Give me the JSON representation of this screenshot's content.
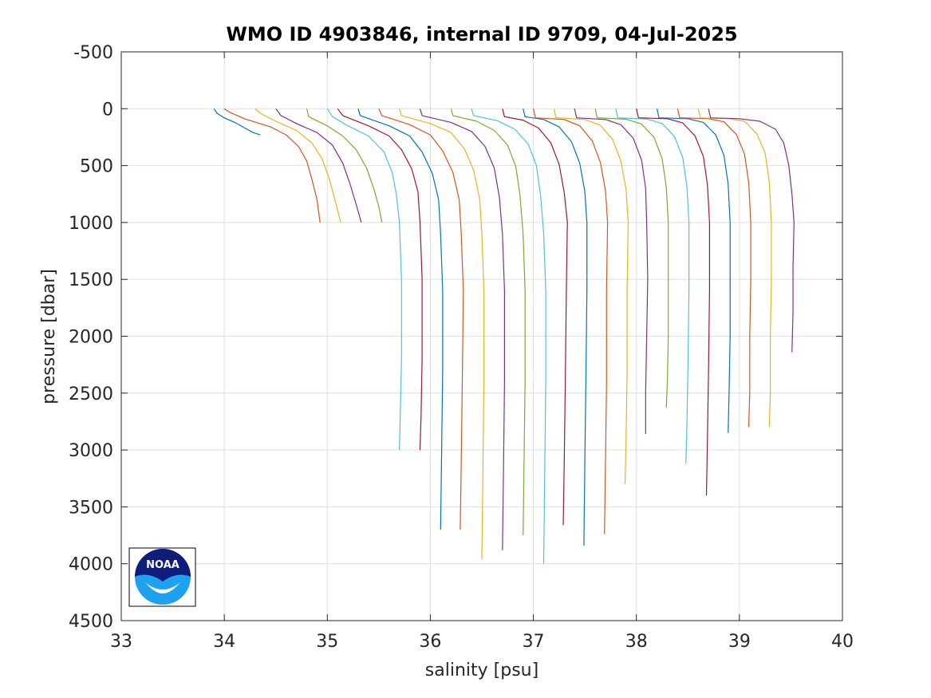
{
  "chart_data": {
    "type": "line",
    "title": "WMO ID 4903846, internal ID 9709, 04-Jul-2025",
    "xlabel": "salinity [psu]",
    "ylabel": "pressure [dbar]",
    "xlim": [
      33,
      40
    ],
    "ylim": [
      -500,
      4500
    ],
    "y_reversed": true,
    "grid": true,
    "xticks": [
      33,
      34,
      35,
      36,
      37,
      38,
      39,
      40
    ],
    "yticks": [
      -500,
      0,
      500,
      1000,
      1500,
      2000,
      2500,
      3000,
      3500,
      4000,
      4500
    ],
    "xtick_labels": [
      "33",
      "34",
      "35",
      "36",
      "37",
      "38",
      "39",
      "40"
    ],
    "ytick_labels": [
      "-500",
      "0",
      "500",
      "1000",
      "1500",
      "2000",
      "2500",
      "3000",
      "3500",
      "4000",
      "4500"
    ],
    "colors": [
      "#0072BD",
      "#D95319",
      "#EDB120",
      "#7E2F8E",
      "#77AC30",
      "#4DBEEE",
      "#A2142F"
    ],
    "series": [
      {
        "points": [
          [
            33.9,
            0
          ],
          [
            33.93,
            40
          ],
          [
            34.0,
            80
          ],
          [
            34.1,
            120
          ],
          [
            34.2,
            170
          ],
          [
            34.28,
            210
          ],
          [
            34.35,
            230
          ]
        ]
      },
      {
        "points": [
          [
            34.0,
            0
          ],
          [
            34.05,
            30
          ],
          [
            34.2,
            90
          ],
          [
            34.45,
            160
          ],
          [
            34.6,
            230
          ],
          [
            34.72,
            330
          ],
          [
            34.8,
            460
          ],
          [
            34.85,
            620
          ],
          [
            34.9,
            800
          ],
          [
            34.93,
            1000
          ]
        ]
      },
      {
        "points": [
          [
            34.3,
            0
          ],
          [
            34.35,
            40
          ],
          [
            34.5,
            110
          ],
          [
            34.7,
            190
          ],
          [
            34.85,
            300
          ],
          [
            34.95,
            440
          ],
          [
            35.02,
            620
          ],
          [
            35.08,
            820
          ],
          [
            35.13,
            1000
          ]
        ]
      },
      {
        "points": [
          [
            34.5,
            0
          ],
          [
            34.55,
            60
          ],
          [
            34.7,
            130
          ],
          [
            34.9,
            210
          ],
          [
            35.05,
            320
          ],
          [
            35.15,
            480
          ],
          [
            35.22,
            660
          ],
          [
            35.28,
            840
          ],
          [
            35.33,
            1000
          ]
        ]
      },
      {
        "points": [
          [
            34.8,
            0
          ],
          [
            34.82,
            70
          ],
          [
            35.0,
            150
          ],
          [
            35.15,
            240
          ],
          [
            35.28,
            360
          ],
          [
            35.38,
            520
          ],
          [
            35.45,
            700
          ],
          [
            35.5,
            860
          ],
          [
            35.53,
            1000
          ]
        ]
      },
      {
        "points": [
          [
            35.0,
            0
          ],
          [
            35.05,
            70
          ],
          [
            35.2,
            150
          ],
          [
            35.4,
            240
          ],
          [
            35.55,
            380
          ],
          [
            35.63,
            560
          ],
          [
            35.67,
            750
          ],
          [
            35.7,
            1000
          ],
          [
            35.72,
            1500
          ],
          [
            35.72,
            2200
          ],
          [
            35.71,
            2600
          ],
          [
            35.7,
            3000
          ]
        ]
      },
      {
        "points": [
          [
            35.1,
            0
          ],
          [
            35.15,
            60
          ],
          [
            35.4,
            150
          ],
          [
            35.6,
            240
          ],
          [
            35.72,
            360
          ],
          [
            35.82,
            530
          ],
          [
            35.88,
            730
          ],
          [
            35.9,
            1000
          ],
          [
            35.92,
            1500
          ],
          [
            35.92,
            2200
          ],
          [
            35.91,
            2700
          ],
          [
            35.9,
            3000
          ]
        ]
      },
      {
        "points": [
          [
            35.3,
            0
          ],
          [
            35.32,
            60
          ],
          [
            35.6,
            150
          ],
          [
            35.8,
            240
          ],
          [
            35.92,
            380
          ],
          [
            36.02,
            570
          ],
          [
            36.08,
            800
          ],
          [
            36.1,
            1100
          ],
          [
            36.12,
            1600
          ],
          [
            36.12,
            2300
          ],
          [
            36.11,
            3000
          ],
          [
            36.1,
            3700
          ]
        ]
      },
      {
        "points": [
          [
            35.5,
            0
          ],
          [
            35.53,
            60
          ],
          [
            35.8,
            140
          ],
          [
            36.0,
            230
          ],
          [
            36.12,
            370
          ],
          [
            36.22,
            560
          ],
          [
            36.28,
            800
          ],
          [
            36.3,
            1100
          ],
          [
            36.32,
            1600
          ],
          [
            36.31,
            2400
          ],
          [
            36.3,
            3100
          ],
          [
            36.29,
            3700
          ]
        ]
      },
      {
        "points": [
          [
            35.7,
            0
          ],
          [
            35.72,
            60
          ],
          [
            36.0,
            130
          ],
          [
            36.2,
            210
          ],
          [
            36.33,
            350
          ],
          [
            36.42,
            540
          ],
          [
            36.48,
            800
          ],
          [
            36.5,
            1100
          ],
          [
            36.52,
            1600
          ],
          [
            36.52,
            2400
          ],
          [
            36.51,
            3200
          ],
          [
            36.5,
            3960
          ]
        ]
      },
      {
        "points": [
          [
            35.9,
            0
          ],
          [
            35.92,
            60
          ],
          [
            36.2,
            120
          ],
          [
            36.4,
            200
          ],
          [
            36.53,
            330
          ],
          [
            36.62,
            520
          ],
          [
            36.67,
            780
          ],
          [
            36.7,
            1100
          ],
          [
            36.72,
            1600
          ],
          [
            36.72,
            2400
          ],
          [
            36.71,
            3200
          ],
          [
            36.7,
            3880
          ]
        ]
      },
      {
        "points": [
          [
            36.2,
            0
          ],
          [
            36.22,
            60
          ],
          [
            36.45,
            110
          ],
          [
            36.62,
            190
          ],
          [
            36.75,
            320
          ],
          [
            36.83,
            510
          ],
          [
            36.87,
            760
          ],
          [
            36.9,
            1100
          ],
          [
            36.92,
            1600
          ],
          [
            36.92,
            2400
          ],
          [
            36.91,
            3100
          ],
          [
            36.9,
            3750
          ]
        ]
      },
      {
        "points": [
          [
            36.4,
            0
          ],
          [
            36.42,
            60
          ],
          [
            36.65,
            105
          ],
          [
            36.82,
            180
          ],
          [
            36.95,
            310
          ],
          [
            37.03,
            500
          ],
          [
            37.07,
            760
          ],
          [
            37.1,
            1100
          ],
          [
            37.12,
            1600
          ],
          [
            37.12,
            2400
          ],
          [
            37.11,
            3200
          ],
          [
            37.1,
            4000
          ]
        ]
      },
      {
        "points": [
          [
            36.7,
            0
          ],
          [
            36.72,
            70
          ],
          [
            36.9,
            100
          ],
          [
            37.05,
            170
          ],
          [
            37.17,
            300
          ],
          [
            37.25,
            490
          ],
          [
            37.3,
            740
          ],
          [
            37.33,
            1000
          ],
          [
            37.32,
            1600
          ],
          [
            37.31,
            2400
          ],
          [
            37.3,
            3100
          ],
          [
            37.29,
            3660
          ]
        ]
      },
      {
        "points": [
          [
            36.9,
            0
          ],
          [
            36.92,
            70
          ],
          [
            37.1,
            95
          ],
          [
            37.25,
            160
          ],
          [
            37.37,
            290
          ],
          [
            37.45,
            480
          ],
          [
            37.5,
            730
          ],
          [
            37.52,
            1000
          ],
          [
            37.52,
            1600
          ],
          [
            37.51,
            2400
          ],
          [
            37.5,
            3100
          ],
          [
            37.49,
            3840
          ]
        ]
      },
      {
        "points": [
          [
            37.0,
            0
          ],
          [
            37.02,
            80
          ],
          [
            37.3,
            95
          ],
          [
            37.45,
            150
          ],
          [
            37.57,
            280
          ],
          [
            37.65,
            470
          ],
          [
            37.7,
            720
          ],
          [
            37.72,
            1000
          ],
          [
            37.71,
            1600
          ],
          [
            37.71,
            2400
          ],
          [
            37.7,
            3100
          ],
          [
            37.69,
            3740
          ]
        ]
      },
      {
        "points": [
          [
            37.2,
            0
          ],
          [
            37.22,
            80
          ],
          [
            37.5,
            95
          ],
          [
            37.65,
            145
          ],
          [
            37.77,
            270
          ],
          [
            37.85,
            460
          ],
          [
            37.9,
            710
          ],
          [
            37.92,
            1000
          ],
          [
            37.91,
            1600
          ],
          [
            37.91,
            2300
          ],
          [
            37.9,
            2900
          ],
          [
            37.89,
            3300
          ]
        ]
      },
      {
        "points": [
          [
            37.4,
            0
          ],
          [
            37.42,
            80
          ],
          [
            37.7,
            95
          ],
          [
            37.85,
            140
          ],
          [
            37.97,
            260
          ],
          [
            38.05,
            450
          ],
          [
            38.09,
            700
          ],
          [
            38.1,
            1000
          ],
          [
            38.11,
            1500
          ],
          [
            38.1,
            2000
          ],
          [
            38.09,
            2500
          ],
          [
            38.09,
            2860
          ]
        ]
      },
      {
        "points": [
          [
            37.6,
            0
          ],
          [
            37.62,
            80
          ],
          [
            37.9,
            92
          ],
          [
            38.05,
            135
          ],
          [
            38.17,
            250
          ],
          [
            38.25,
            440
          ],
          [
            38.29,
            690
          ],
          [
            38.31,
            1000
          ],
          [
            38.31,
            1500
          ],
          [
            38.31,
            2000
          ],
          [
            38.3,
            2400
          ],
          [
            38.29,
            2630
          ]
        ]
      },
      {
        "points": [
          [
            37.8,
            0
          ],
          [
            37.82,
            80
          ],
          [
            38.1,
            90
          ],
          [
            38.25,
            130
          ],
          [
            38.37,
            245
          ],
          [
            38.45,
            430
          ],
          [
            38.49,
            680
          ],
          [
            38.51,
            1000
          ],
          [
            38.51,
            1600
          ],
          [
            38.5,
            2300
          ],
          [
            38.49,
            2800
          ],
          [
            38.48,
            3120
          ]
        ]
      },
      {
        "points": [
          [
            38.0,
            0
          ],
          [
            38.02,
            80
          ],
          [
            38.3,
            88
          ],
          [
            38.45,
            125
          ],
          [
            38.57,
            240
          ],
          [
            38.65,
            420
          ],
          [
            38.69,
            670
          ],
          [
            38.71,
            1000
          ],
          [
            38.71,
            1600
          ],
          [
            38.7,
            2300
          ],
          [
            38.69,
            2900
          ],
          [
            38.68,
            3400
          ]
        ]
      },
      {
        "points": [
          [
            38.2,
            0
          ],
          [
            38.22,
            80
          ],
          [
            38.5,
            88
          ],
          [
            38.65,
            120
          ],
          [
            38.77,
            230
          ],
          [
            38.85,
            410
          ],
          [
            38.89,
            660
          ],
          [
            38.91,
            1000
          ],
          [
            38.91,
            1500
          ],
          [
            38.91,
            2000
          ],
          [
            38.9,
            2500
          ],
          [
            38.89,
            2850
          ]
        ]
      },
      {
        "points": [
          [
            38.4,
            0
          ],
          [
            38.42,
            80
          ],
          [
            38.7,
            88
          ],
          [
            38.85,
            115
          ],
          [
            38.97,
            225
          ],
          [
            39.05,
            400
          ],
          [
            39.09,
            650
          ],
          [
            39.11,
            1000
          ],
          [
            39.11,
            1500
          ],
          [
            39.1,
            2000
          ],
          [
            39.1,
            2500
          ],
          [
            39.09,
            2800
          ]
        ]
      },
      {
        "points": [
          [
            38.6,
            0
          ],
          [
            38.62,
            80
          ],
          [
            38.9,
            88
          ],
          [
            39.05,
            110
          ],
          [
            39.17,
            220
          ],
          [
            39.25,
            390
          ],
          [
            39.29,
            640
          ],
          [
            39.31,
            1000
          ],
          [
            39.31,
            1500
          ],
          [
            39.3,
            2000
          ],
          [
            39.3,
            2500
          ],
          [
            39.29,
            2800
          ]
        ]
      },
      {
        "points": [
          [
            38.7,
            0
          ],
          [
            38.72,
            80
          ],
          [
            39.0,
            88
          ],
          [
            39.2,
            110
          ],
          [
            39.35,
            180
          ],
          [
            39.43,
            300
          ],
          [
            39.48,
            500
          ],
          [
            39.51,
            750
          ],
          [
            39.53,
            1000
          ],
          [
            39.52,
            1400
          ],
          [
            39.52,
            1800
          ],
          [
            39.51,
            2140
          ]
        ]
      }
    ]
  }
}
